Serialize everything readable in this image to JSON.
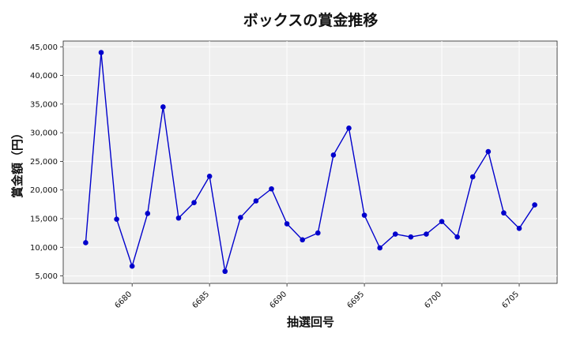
{
  "chart_data": {
    "type": "line",
    "title": "ボックスの賞金推移",
    "xlabel": "抽選回号",
    "ylabel": "賞金額（円）",
    "x": [
      6677,
      6678,
      6679,
      6680,
      6681,
      6682,
      6683,
      6684,
      6685,
      6686,
      6687,
      6688,
      6689,
      6690,
      6691,
      6692,
      6693,
      6694,
      6695,
      6696,
      6697,
      6698,
      6699,
      6700,
      6701,
      6702,
      6703,
      6704,
      6705,
      6706
    ],
    "series": [
      {
        "values": [
          10800,
          44000,
          14900,
          6700,
          15900,
          34500,
          15100,
          17800,
          22400,
          5800,
          15200,
          18100,
          20200,
          14100,
          11300,
          12500,
          26100,
          30800,
          15600,
          9900,
          12300,
          11800,
          12300,
          14500,
          11800,
          22300,
          26700,
          16000,
          13300,
          17400
        ],
        "color": "#0000cc"
      }
    ],
    "xticks": [
      6680,
      6685,
      6690,
      6695,
      6700,
      6705
    ],
    "xtick_labels": [
      "6680",
      "6685",
      "6690",
      "6695",
      "6700",
      "6705"
    ],
    "yticks": [
      5000,
      10000,
      15000,
      20000,
      25000,
      30000,
      35000,
      40000,
      45000
    ],
    "ytick_labels": [
      "5,000",
      "10,000",
      "15,000",
      "20,000",
      "25,000",
      "30,000",
      "35,000",
      "40,000",
      "45,000"
    ],
    "xlim": [
      6675.55,
      6707.45
    ],
    "ylim": [
      3700,
      46000
    ],
    "grid": true,
    "plot_background": "#efefef",
    "grid_color": "#ffffff",
    "legend": "none"
  }
}
